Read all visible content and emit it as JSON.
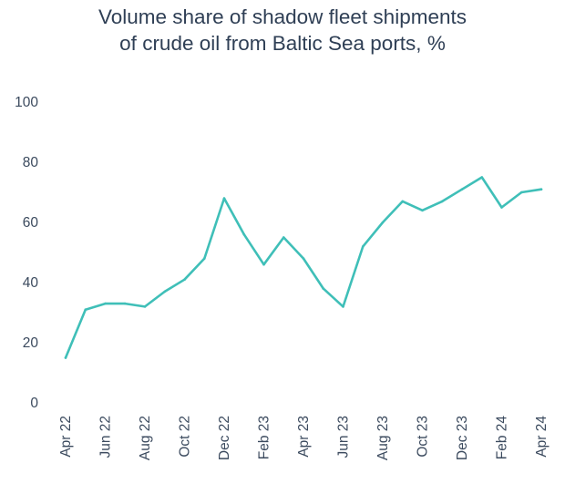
{
  "chart_data": {
    "type": "line",
    "title_lines": [
      "Volume share of shadow fleet shipments",
      "of crude oil from Baltic Sea ports, %"
    ],
    "xlabel": "",
    "ylabel": "",
    "ylim": [
      0,
      100
    ],
    "yticks": [
      0,
      20,
      40,
      60,
      80,
      100
    ],
    "x": [
      "Apr 22",
      "May 22",
      "Jun 22",
      "Jul 22",
      "Aug 22",
      "Sep 22",
      "Oct 22",
      "Nov 22",
      "Dec 22",
      "Jan 23",
      "Feb 23",
      "Mar 23",
      "Apr 23",
      "May 23",
      "Jun 23",
      "Jul 23",
      "Aug 23",
      "Sep 23",
      "Oct 23",
      "Nov 23",
      "Dec 23",
      "Jan 24",
      "Feb 24",
      "Mar 24",
      "Apr 24"
    ],
    "x_tick_labels": [
      "Apr 22",
      "Jun 22",
      "Aug 22",
      "Oct 22",
      "Dec 22",
      "Feb 23",
      "Apr 23",
      "Jun 23",
      "Aug 23",
      "Oct 23",
      "Dec 23",
      "Feb 24",
      "Apr 24"
    ],
    "series": [
      {
        "values": [
          15,
          31,
          33,
          33,
          32,
          37,
          41,
          48,
          68,
          56,
          46,
          55,
          48,
          38,
          32,
          52,
          60,
          67,
          64,
          67,
          71,
          75,
          65,
          70,
          71
        ],
        "color": "#3fbfb8"
      }
    ],
    "grid": false,
    "legend": "none"
  }
}
